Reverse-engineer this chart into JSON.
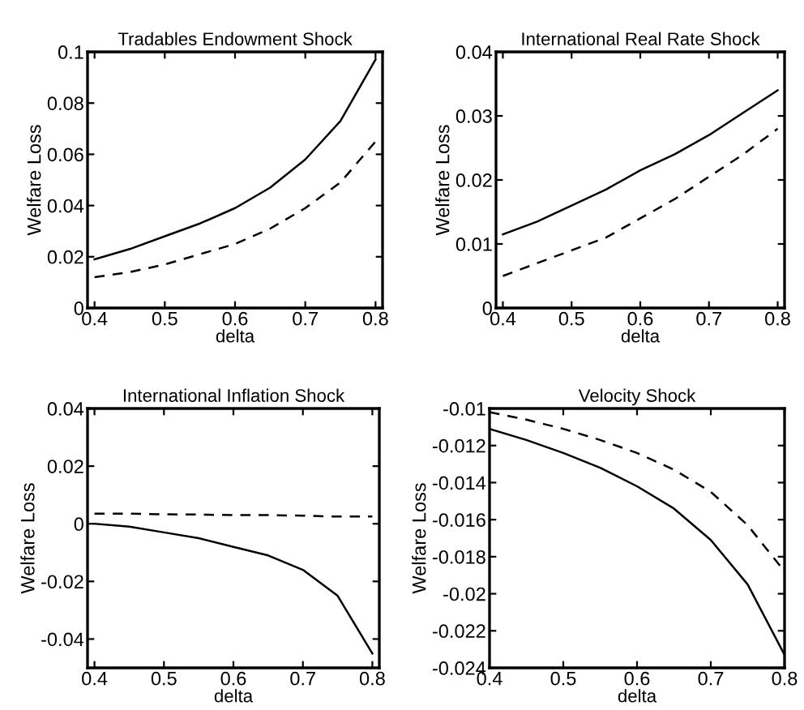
{
  "chart_data": [
    {
      "type": "line",
      "title": "Tradables Endowment Shock",
      "xlabel": "delta",
      "ylabel": "Welfare Loss",
      "x": [
        0.4,
        0.45,
        0.5,
        0.55,
        0.6,
        0.65,
        0.7,
        0.75,
        0.8
      ],
      "xlim": [
        0.39,
        0.81
      ],
      "xticks": [
        0.4,
        0.5,
        0.6,
        0.7,
        0.8
      ],
      "ylim": [
        0,
        0.1
      ],
      "yticks": [
        0,
        0.02,
        0.04,
        0.06,
        0.08,
        0.1
      ],
      "grid": false,
      "legend": false,
      "series": [
        {
          "color": "#000000",
          "line_style": "solid",
          "values": [
            0.019,
            0.023,
            0.028,
            0.033,
            0.039,
            0.047,
            0.058,
            0.073,
            0.097
          ]
        },
        {
          "color": "#000000",
          "line_style": "dashed",
          "values": [
            0.012,
            0.014,
            0.017,
            0.021,
            0.025,
            0.031,
            0.039,
            0.049,
            0.065
          ]
        }
      ]
    },
    {
      "type": "line",
      "title": "International Real Rate Shock",
      "xlabel": "delta",
      "ylabel": "Welfare Loss",
      "x": [
        0.4,
        0.45,
        0.5,
        0.55,
        0.6,
        0.65,
        0.7,
        0.75,
        0.8
      ],
      "xlim": [
        0.39,
        0.81
      ],
      "xticks": [
        0.4,
        0.5,
        0.6,
        0.7,
        0.8
      ],
      "ylim": [
        0,
        0.04
      ],
      "yticks": [
        0,
        0.01,
        0.02,
        0.03,
        0.04
      ],
      "grid": false,
      "legend": false,
      "series": [
        {
          "color": "#000000",
          "line_style": "solid",
          "values": [
            0.0115,
            0.0135,
            0.016,
            0.0185,
            0.0215,
            0.024,
            0.027,
            0.0305,
            0.034
          ]
        },
        {
          "color": "#000000",
          "line_style": "dashed",
          "values": [
            0.005,
            0.007,
            0.009,
            0.011,
            0.014,
            0.017,
            0.0205,
            0.024,
            0.028
          ]
        }
      ]
    },
    {
      "type": "line",
      "title": "International Inflation Shock",
      "xlabel": "delta",
      "ylabel": "Welfare Loss",
      "x": [
        0.4,
        0.45,
        0.5,
        0.55,
        0.6,
        0.65,
        0.7,
        0.75,
        0.8
      ],
      "xlim": [
        0.39,
        0.81
      ],
      "xticks": [
        0.4,
        0.5,
        0.6,
        0.7,
        0.8
      ],
      "ylim": [
        -0.05,
        0.04
      ],
      "yticks": [
        -0.04,
        -0.02,
        0,
        0.02,
        0.04
      ],
      "grid": false,
      "legend": false,
      "series": [
        {
          "color": "#000000",
          "line_style": "solid",
          "values": [
            0.0,
            -0.001,
            -0.003,
            -0.005,
            -0.008,
            -0.011,
            -0.016,
            -0.025,
            -0.045
          ]
        },
        {
          "color": "#000000",
          "line_style": "dashed",
          "values": [
            0.0035,
            0.0035,
            0.0033,
            0.0032,
            0.003,
            0.003,
            0.0028,
            0.0025,
            0.0025
          ]
        }
      ]
    },
    {
      "type": "line",
      "title": "Velocity Shock",
      "xlabel": "delta",
      "ylabel": "Welfare Loss",
      "x": [
        0.4,
        0.45,
        0.5,
        0.55,
        0.6,
        0.65,
        0.7,
        0.75,
        0.8
      ],
      "xlim": [
        0.4,
        0.8
      ],
      "xticks": [
        0.4,
        0.5,
        0.6,
        0.7,
        0.8
      ],
      "ylim": [
        -0.024,
        -0.01
      ],
      "yticks": [
        -0.024,
        -0.022,
        -0.02,
        -0.018,
        -0.016,
        -0.014,
        -0.012,
        -0.01
      ],
      "grid": false,
      "legend": false,
      "series": [
        {
          "color": "#000000",
          "line_style": "solid",
          "values": [
            -0.0111,
            -0.0117,
            -0.0124,
            -0.0132,
            -0.0142,
            -0.0154,
            -0.0171,
            -0.0195,
            -0.0233
          ]
        },
        {
          "color": "#000000",
          "line_style": "dashed",
          "values": [
            -0.0102,
            -0.0106,
            -0.0111,
            -0.0117,
            -0.0124,
            -0.0133,
            -0.0145,
            -0.0163,
            -0.0188
          ]
        }
      ]
    }
  ]
}
